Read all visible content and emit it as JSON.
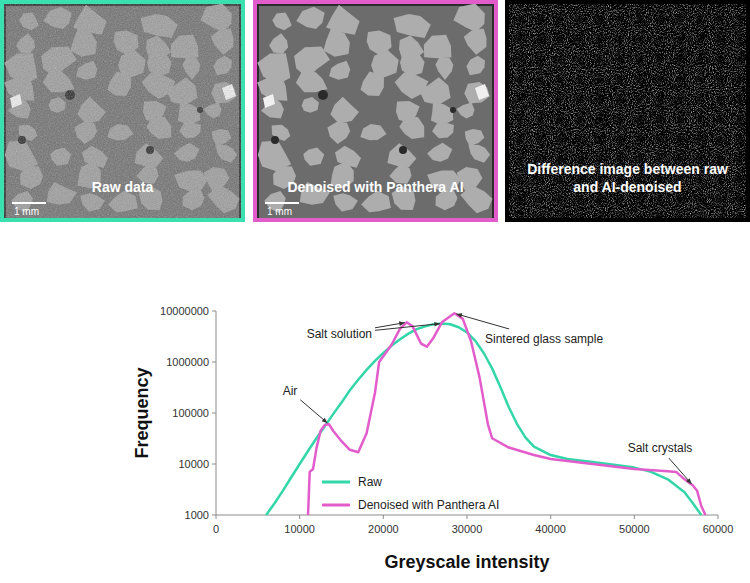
{
  "panels": [
    {
      "label": "Raw data",
      "scale_bar": "1 mm"
    },
    {
      "label": "Denoised with Panthera AI",
      "scale_bar": "1 mm"
    },
    {
      "label": "Difference image between raw and AI-denoised"
    }
  ],
  "chart_data": {
    "type": "line",
    "x_label": "Greyscale intensity",
    "y_label": "Frequency",
    "log": "y",
    "grid": false,
    "legend": "lower left",
    "xlim": [
      0,
      60000
    ],
    "xticks": [
      0,
      10000,
      20000,
      30000,
      40000,
      50000,
      60000
    ],
    "ylim": [
      1000,
      10000000
    ],
    "yticks": [
      1000,
      10000,
      100000,
      1000000,
      10000000
    ],
    "series": [
      {
        "name": "Raw",
        "color": "#33d6a8",
        "x": [
          6000,
          7000,
          8000,
          9000,
          10000,
          11000,
          12000,
          13000,
          14000,
          15000,
          16000,
          17000,
          18000,
          19000,
          20000,
          21000,
          22000,
          23000,
          24000,
          25000,
          26000,
          27000,
          28000,
          29000,
          30000,
          31000,
          32000,
          33000,
          34000,
          35000,
          36000,
          37000,
          38000,
          40000,
          42000,
          45000,
          48000,
          50000,
          52000,
          54000,
          56000,
          57000,
          58000
        ],
        "values": [
          1000,
          1700,
          3000,
          5500,
          10000,
          18000,
          32000,
          55000,
          95000,
          160000,
          280000,
          450000,
          700000,
          1050000,
          1500000,
          2100000,
          2800000,
          3600000,
          4400000,
          5000000,
          5500000,
          5700000,
          5500000,
          4800000,
          3800000,
          2600000,
          1500000,
          750000,
          320000,
          130000,
          60000,
          33000,
          22000,
          15000,
          12500,
          11000,
          9500,
          8500,
          7000,
          5000,
          2800,
          1700,
          1000
        ]
      },
      {
        "name": "Denoised with Panthera AI",
        "color": "#e35ccb",
        "x": [
          11000,
          11200,
          11600,
          12000,
          12500,
          13000,
          13500,
          14000,
          15000,
          16000,
          17000,
          18000,
          19000,
          19500,
          20000,
          21000,
          22000,
          22800,
          23500,
          24500,
          25200,
          26000,
          27000,
          28500,
          29500,
          30500,
          31500,
          32500,
          33000,
          35000,
          38000,
          40000,
          45000,
          50000,
          54000,
          55000,
          56000,
          57000,
          57500,
          58000,
          58500
        ],
        "values": [
          1000,
          7000,
          8000,
          20000,
          45000,
          58000,
          60000,
          45000,
          28000,
          19000,
          17000,
          40000,
          250000,
          1000000,
          1300000,
          2200000,
          4500000,
          6000000,
          5000000,
          2300000,
          2000000,
          3000000,
          6000000,
          9000000,
          7000000,
          2500000,
          500000,
          60000,
          32000,
          21000,
          15000,
          12500,
          10000,
          8000,
          7200,
          7000,
          5000,
          3800,
          3000,
          1500,
          1000
        ]
      }
    ],
    "annotations": [
      {
        "text": "Air",
        "points": [
          [
            13500,
            60000
          ]
        ]
      },
      {
        "text": "Salt solution",
        "points": [
          [
            22800,
            6000000
          ],
          [
            27000,
            5700000
          ]
        ]
      },
      {
        "text": "Sintered glass sample",
        "points": [
          [
            28500,
            9000000
          ]
        ]
      },
      {
        "text": "Salt crystals",
        "points": [
          [
            57000,
            3800
          ]
        ]
      }
    ]
  }
}
